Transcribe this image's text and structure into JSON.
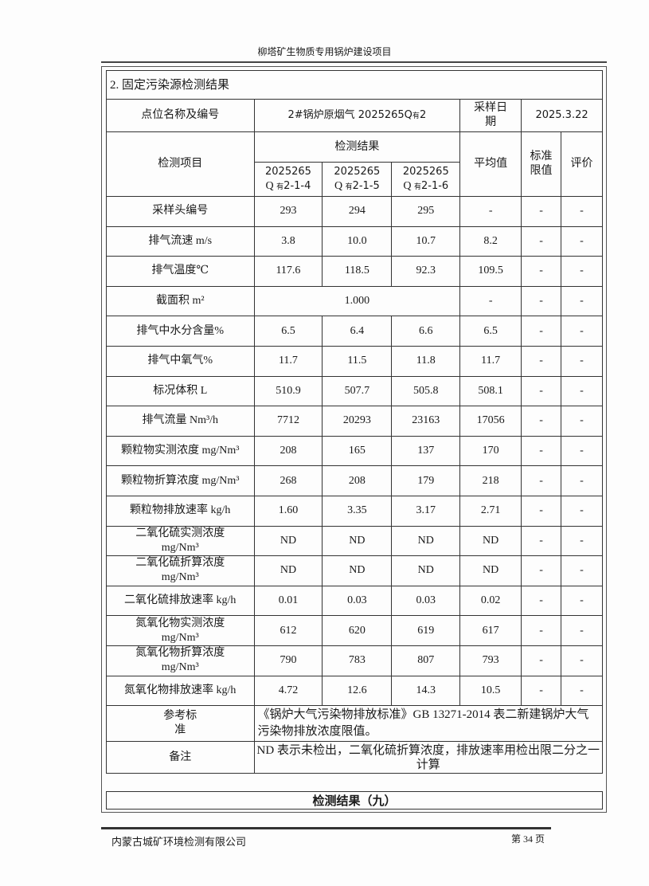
{
  "header": {
    "title": "柳塔矿生物质专用锅炉建设项目"
  },
  "section_title": "2. 固定污染源检测结果",
  "info": {
    "site_label": "点位名称及编号",
    "site_value": "2#锅炉原烟气 2025265Q",
    "site_sub": "有",
    "site_suffix": "2",
    "date_label_1": "采样日",
    "date_label_2": "期",
    "date_value": "2025.3.22"
  },
  "columns": {
    "item": "检测项目",
    "results": "检测结果",
    "avg": "平均值",
    "limit_1": "标准",
    "limit_2": "限值",
    "eval": "评价",
    "samples": [
      {
        "a": "2025265",
        "b": "Q",
        "sub": "有",
        "c": "2-1-4"
      },
      {
        "a": "2025265",
        "b": "Q",
        "sub": "有",
        "c": "2-1-5"
      },
      {
        "a": "2025265",
        "b": "Q",
        "sub": "有",
        "c": "2-1-6"
      }
    ]
  },
  "rows": [
    {
      "item": "采样头编号",
      "v1": "293",
      "v2": "294",
      "v3": "295",
      "avg": "-",
      "limit": "-",
      "eval": "-"
    },
    {
      "item": "排气流速 m/s",
      "v1": "3.8",
      "v2": "10.0",
      "v3": "10.7",
      "avg": "8.2",
      "limit": "-",
      "eval": "-"
    },
    {
      "item": "排气温度℃",
      "v1": "117.6",
      "v2": "118.5",
      "v3": "92.3",
      "avg": "109.5",
      "limit": "-",
      "eval": "-"
    },
    {
      "item": "截面积 m²",
      "merged": "1.000",
      "avg": "-",
      "limit": "-",
      "eval": "-"
    },
    {
      "item": "排气中水分含量%",
      "v1": "6.5",
      "v2": "6.4",
      "v3": "6.6",
      "avg": "6.5",
      "limit": "-",
      "eval": "-"
    },
    {
      "item": "排气中氧气%",
      "v1": "11.7",
      "v2": "11.5",
      "v3": "11.8",
      "avg": "11.7",
      "limit": "-",
      "eval": "-"
    },
    {
      "item": "标况体积 L",
      "v1": "510.9",
      "v2": "507.7",
      "v3": "505.8",
      "avg": "508.1",
      "limit": "-",
      "eval": "-"
    },
    {
      "item": "排气流量 Nm³/h",
      "v1": "7712",
      "v2": "20293",
      "v3": "23163",
      "avg": "17056",
      "limit": "-",
      "eval": "-"
    },
    {
      "item": "颗粒物实测浓度 mg/Nm³",
      "v1": "208",
      "v2": "165",
      "v3": "137",
      "avg": "170",
      "limit": "-",
      "eval": "-"
    },
    {
      "item": "颗粒物折算浓度 mg/Nm³",
      "v1": "268",
      "v2": "208",
      "v3": "179",
      "avg": "218",
      "limit": "-",
      "eval": "-"
    },
    {
      "item": "颗粒物排放速率 kg/h",
      "v1": "1.60",
      "v2": "3.35",
      "v3": "3.17",
      "avg": "2.71",
      "limit": "-",
      "eval": "-"
    },
    {
      "item": "二氧化硫实测浓度",
      "item2": "mg/Nm³",
      "v1": "ND",
      "v2": "ND",
      "v3": "ND",
      "avg": "ND",
      "limit": "-",
      "eval": "-"
    },
    {
      "item": "二氧化硫折算浓度",
      "item2": "mg/Nm³",
      "v1": "ND",
      "v2": "ND",
      "v3": "ND",
      "avg": "ND",
      "limit": "-",
      "eval": "-"
    },
    {
      "item": "二氧化硫排放速率 kg/h",
      "v1": "0.01",
      "v2": "0.03",
      "v3": "0.03",
      "avg": "0.02",
      "limit": "-",
      "eval": "-"
    },
    {
      "item": "氮氧化物实测浓度",
      "item2": "mg/Nm³",
      "v1": "612",
      "v2": "620",
      "v3": "619",
      "avg": "617",
      "limit": "-",
      "eval": "-"
    },
    {
      "item": "氮氧化物折算浓度",
      "item2": "mg/Nm³",
      "v1": "790",
      "v2": "783",
      "v3": "807",
      "avg": "793",
      "limit": "-",
      "eval": "-"
    },
    {
      "item": "氮氧化物排放速率 kg/h",
      "v1": "4.72",
      "v2": "12.6",
      "v3": "14.3",
      "avg": "10.5",
      "limit": "-",
      "eval": "-"
    }
  ],
  "reference": {
    "label_1": "参考标",
    "label_2": "准",
    "text": "《锅炉大气污染物排放标准》GB 13271-2014 表二新建锅炉大气污染物排放浓度限值。"
  },
  "note": {
    "label": "备注",
    "text": "ND 表示未检出，二氧化硫折算浓度，排放速率用检出限二分之一计算"
  },
  "next_section": "检测结果（九）",
  "footer": {
    "company": "内蒙古城矿环境检测有限公司",
    "page": "第 34 页"
  }
}
